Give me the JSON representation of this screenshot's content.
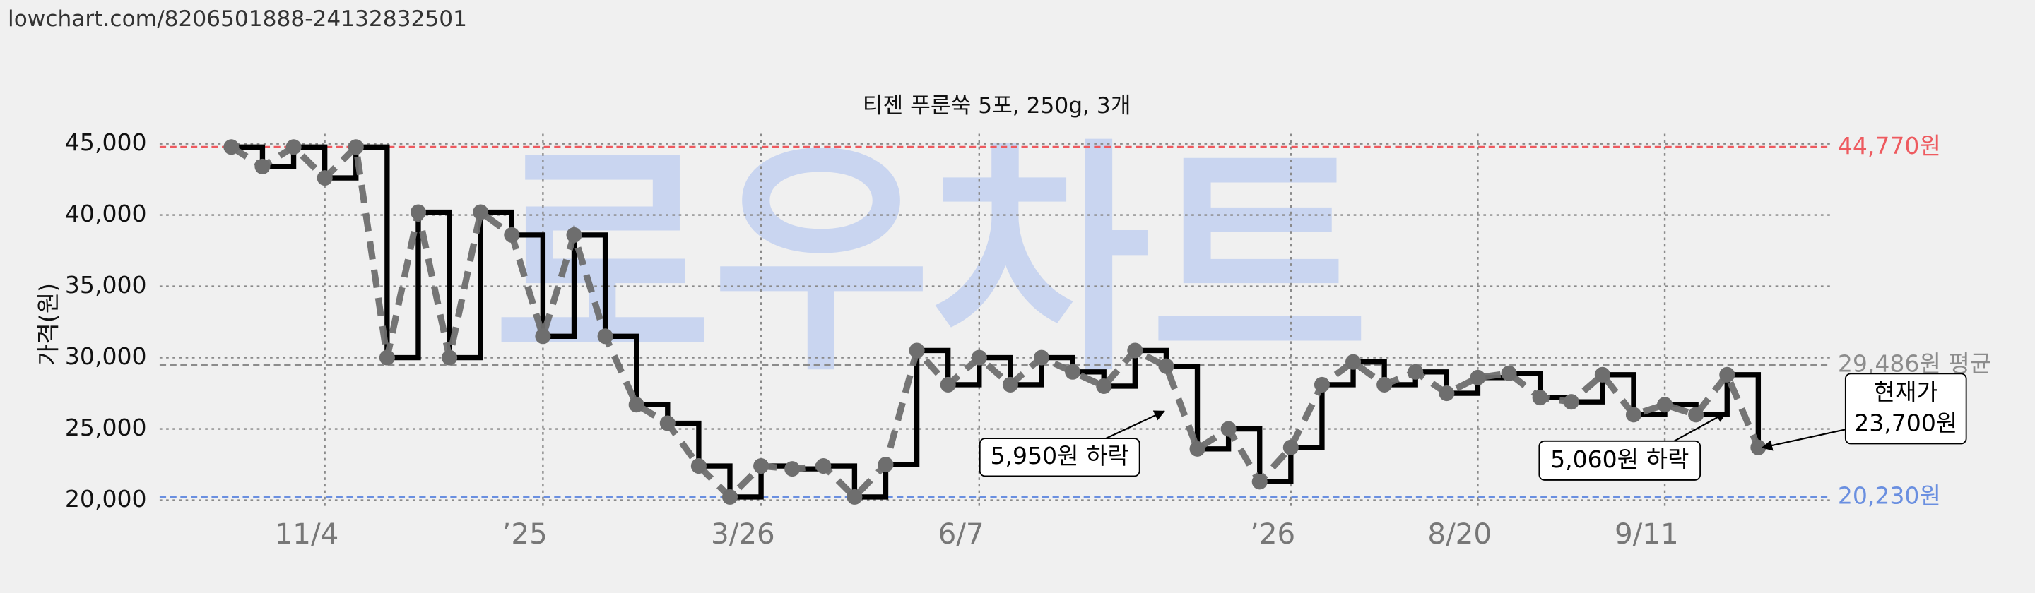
{
  "url": "lowchart.com/8206501888-24132832501",
  "chart_data": {
    "type": "step-line",
    "title": "티젠 푸룬쑥 5포, 250g, 3개",
    "ylabel": "가격(원)",
    "watermark": "로우차트",
    "x": [
      0,
      1,
      2,
      3,
      4,
      5,
      6,
      7,
      8,
      9,
      10,
      11,
      12,
      13,
      14,
      15,
      16,
      17,
      18,
      19,
      20,
      21,
      22,
      23,
      24,
      25,
      26,
      27,
      28,
      29,
      30,
      31,
      32,
      33,
      34,
      35,
      36,
      37,
      38,
      39,
      40,
      41,
      42,
      43,
      44,
      45,
      46,
      47,
      48,
      49
    ],
    "values": [
      44770,
      43400,
      44770,
      42600,
      44770,
      30000,
      40200,
      30000,
      40200,
      38600,
      31500,
      38600,
      31500,
      26700,
      25400,
      22400,
      20230,
      22400,
      22200,
      22400,
      20230,
      22500,
      30500,
      28100,
      30000,
      28100,
      30000,
      29000,
      28000,
      30500,
      29400,
      23600,
      25000,
      21300,
      23700,
      28100,
      29700,
      28100,
      29000,
      27500,
      28600,
      28900,
      27200,
      26900,
      28800,
      26000,
      26700,
      26000,
      28800,
      23700
    ],
    "color": "#000000",
    "dashed_color": "#6e6e6e",
    "xlim": [
      -2.3,
      51.3
    ],
    "xticks": [
      {
        "value": 3,
        "label": "11/4"
      },
      {
        "value": 10,
        "label": "’25"
      },
      {
        "value": 17,
        "label": "3/26"
      },
      {
        "value": 24,
        "label": "6/7"
      },
      {
        "value": 34,
        "label": "’26"
      },
      {
        "value": 40,
        "label": "8/20"
      },
      {
        "value": 46,
        "label": "9/11"
      }
    ],
    "ylim": [
      19600,
      45700
    ],
    "yticks": [
      {
        "value": 20000,
        "label": "20,000"
      },
      {
        "value": 25000,
        "label": "25,000"
      },
      {
        "value": 30000,
        "label": "30,000"
      },
      {
        "value": 35000,
        "label": "35,000"
      },
      {
        "value": 40000,
        "label": "40,000"
      },
      {
        "value": 45000,
        "label": "45,000"
      }
    ],
    "grid": true,
    "ref_lines": [
      {
        "value": 44770,
        "label": "44,770원",
        "color": "#ee5a5f"
      },
      {
        "value": 29486,
        "label": "29,486원 평균",
        "color": "#8c8c8c"
      },
      {
        "value": 20230,
        "label": "20,230원",
        "color": "#6a8fe0"
      }
    ],
    "annotations": [
      {
        "lines": [
          "5,950원 하락"
        ]
      },
      {
        "lines": [
          "5,060원 하락"
        ]
      },
      {
        "lines": [
          "현재가",
          "23,700원"
        ]
      }
    ]
  }
}
